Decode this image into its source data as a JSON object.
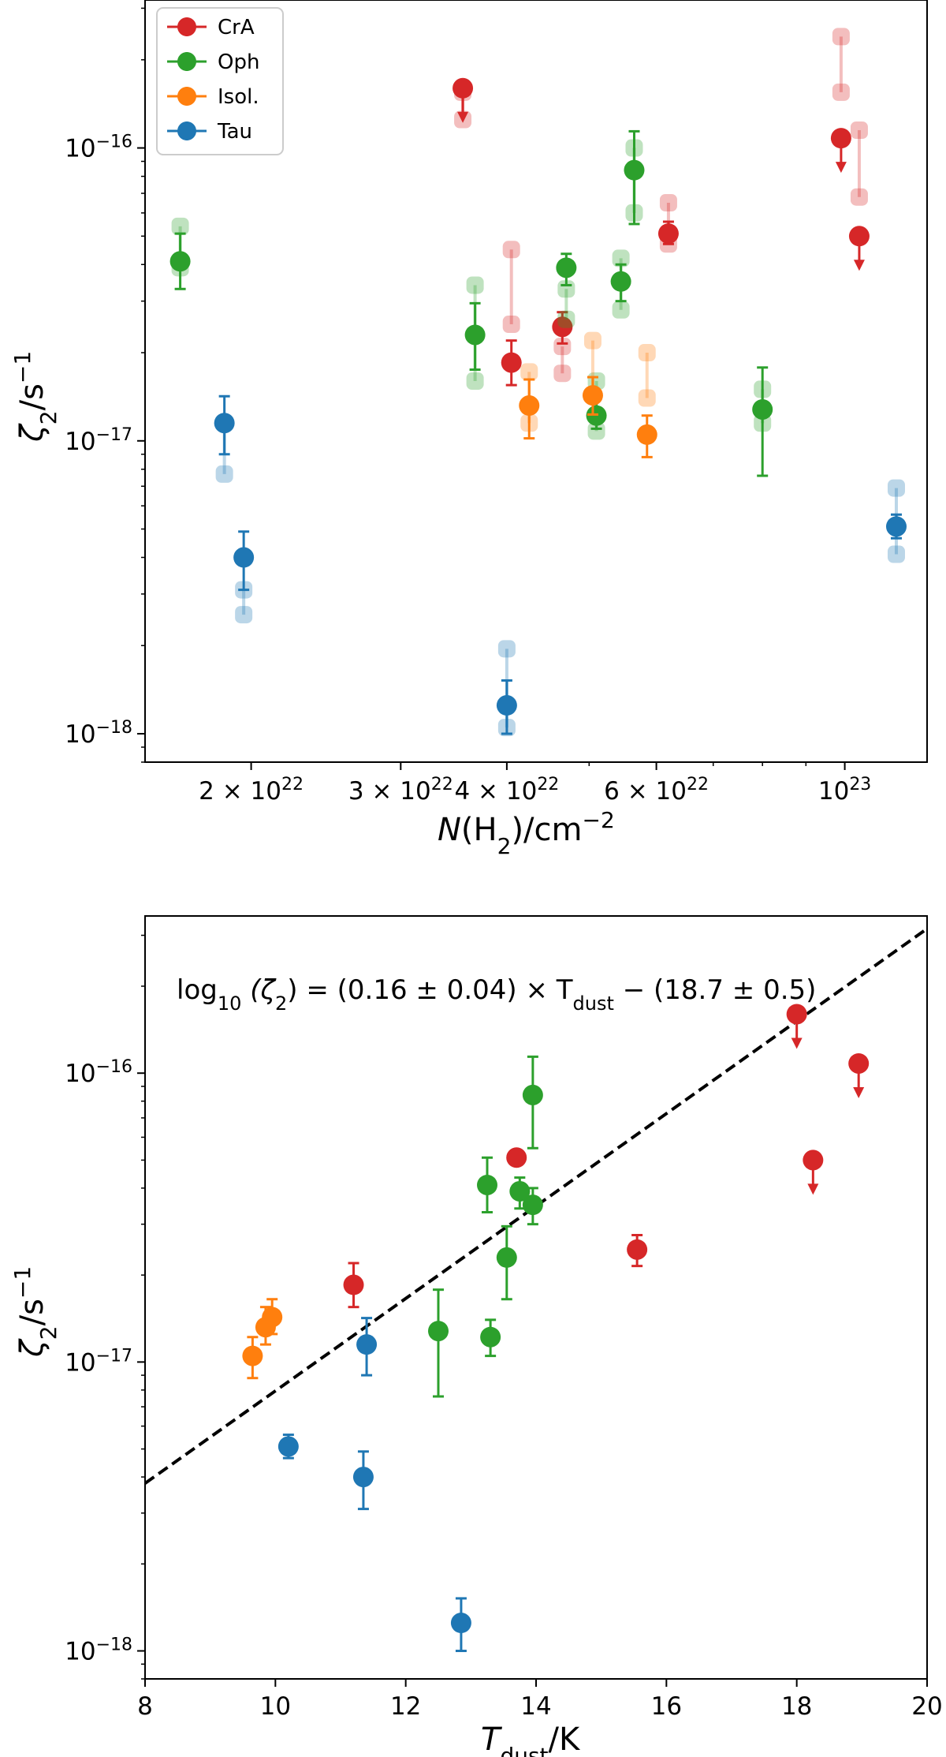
{
  "chart_data": [
    {
      "type": "scatter",
      "xscale": "log",
      "yscale": "log",
      "xlim": [
        15000000000000000000000,
        125000000000000000000000
      ],
      "ylim": [
        8e-19,
        3.2e-16
      ],
      "xlabel_main": "N",
      "xlabel_sub": "(H",
      "xlabel_subscript": "2",
      "xlabel_tail": ")/cm",
      "xlabel_sup": "−2",
      "ylabel_main": "ζ",
      "ylabel_sub": "2",
      "ylabel_tail": "/s",
      "ylabel_sup": "−1",
      "xticks": [
        {
          "value": 20000000000000000000000,
          "mant": "2 × 10",
          "exp": "22"
        },
        {
          "value": 30000000000000000000000,
          "mant": "3 × 10",
          "exp": "22"
        },
        {
          "value": 40000000000000000000000,
          "mant": "4 × 10",
          "exp": "22"
        },
        {
          "value": 60000000000000000000000,
          "mant": "6 × 10",
          "exp": "22"
        },
        {
          "value": 100000000000000000000000,
          "mant": "10",
          "exp": "23"
        }
      ],
      "yticks": [
        {
          "value": 1e-18,
          "mant": "10",
          "exp": "−18"
        },
        {
          "value": 1e-17,
          "mant": "10",
          "exp": "−17"
        },
        {
          "value": 1e-16,
          "mant": "10",
          "exp": "−16"
        }
      ],
      "legend": {
        "placement": "top-left",
        "entries": [
          {
            "name": "CrA",
            "color": "#d62728"
          },
          {
            "name": "Oph",
            "color": "#2ca02c"
          },
          {
            "name": "Isol.",
            "color": "#ff7f0e"
          },
          {
            "name": "Tau",
            "color": "#1f77b4"
          }
        ]
      },
      "series": [
        {
          "name": "CrA",
          "color": "#d62728",
          "points": [
            {
              "x": 35500000000000000000000,
              "y": 1.6e-16,
              "upper_limit": true,
              "range": [
                1.25e-16,
                1.55e-16
              ]
            },
            {
              "x": 40500000000000000000000,
              "y": 1.85e-17,
              "err": [
                1.55e-17,
                2.2e-17
              ],
              "range": [
                2.5e-17,
                4.5e-17
              ]
            },
            {
              "x": 46500000000000000000000,
              "y": 2.45e-17,
              "err": [
                2.15e-17,
                2.75e-17
              ],
              "range": [
                1.7e-17,
                2.1e-17
              ]
            },
            {
              "x": 62000000000000000000000,
              "y": 5.1e-17,
              "err": [
                4.7e-17,
                5.6e-17
              ],
              "range": [
                4.7e-17,
                6.5e-17
              ]
            },
            {
              "x": 99000000000000000000000,
              "y": 1.08e-16,
              "upper_limit": true,
              "range": [
                1.55e-16,
                2.4e-16
              ]
            },
            {
              "x": 104000000000000000000000,
              "y": 5e-17,
              "upper_limit": true,
              "range": [
                6.8e-17,
                1.15e-16
              ]
            }
          ]
        },
        {
          "name": "Oph",
          "color": "#2ca02c",
          "points": [
            {
              "x": 16500000000000000000000,
              "y": 4.1e-17,
              "err": [
                3.3e-17,
                5.1e-17
              ],
              "range": [
                3.9e-17,
                5.4e-17
              ]
            },
            {
              "x": 36700000000000000000000,
              "y": 2.3e-17,
              "err": [
                1.75e-17,
                2.95e-17
              ],
              "range": [
                1.6e-17,
                3.4e-17
              ]
            },
            {
              "x": 47000000000000000000000,
              "y": 3.9e-17,
              "err": [
                3.4e-17,
                4.35e-17
              ],
              "range": [
                2.6e-17,
                3.3e-17
              ]
            },
            {
              "x": 51000000000000000000000,
              "y": 1.22e-17,
              "err": [
                1.1e-17,
                1.4e-17
              ],
              "range": [
                1.08e-17,
                1.6e-17
              ]
            },
            {
              "x": 54500000000000000000000,
              "y": 3.5e-17,
              "err": [
                3e-17,
                4e-17
              ],
              "range": [
                2.8e-17,
                4.2e-17
              ]
            },
            {
              "x": 56500000000000000000000,
              "y": 8.4e-17,
              "err": [
                5.5e-17,
                1.14e-16
              ],
              "range": [
                6e-17,
                1e-16
              ]
            },
            {
              "x": 80000000000000000000000,
              "y": 1.28e-17,
              "err": [
                7.6e-18,
                1.78e-17
              ],
              "range": [
                1.15e-17,
                1.5e-17
              ]
            }
          ]
        },
        {
          "name": "Isol.",
          "color": "#ff7f0e",
          "points": [
            {
              "x": 42500000000000000000000,
              "y": 1.32e-17,
              "err": [
                1.02e-17,
                1.62e-17
              ],
              "range": [
                1.15e-17,
                1.72e-17
              ]
            },
            {
              "x": 50500000000000000000000,
              "y": 1.43e-17,
              "err": [
                1.23e-17,
                1.65e-17
              ],
              "range": [
                1.43e-17,
                2.2e-17
              ]
            },
            {
              "x": 58500000000000000000000,
              "y": 1.05e-17,
              "err": [
                8.8e-18,
                1.22e-17
              ],
              "range": [
                1.4e-17,
                2e-17
              ]
            }
          ]
        },
        {
          "name": "Tau",
          "color": "#1f77b4",
          "points": [
            {
              "x": 18600000000000000000000,
              "y": 1.15e-17,
              "err": [
                9e-18,
                1.42e-17
              ],
              "range": [
                7.7e-18,
                1.15e-17
              ]
            },
            {
              "x": 19600000000000000000000,
              "y": 4e-18,
              "err": [
                3.1e-18,
                4.9e-18
              ],
              "range": [
                2.55e-18,
                3.1e-18
              ]
            },
            {
              "x": 40000000000000000000000,
              "y": 1.25e-18,
              "err": [
                1e-18,
                1.52e-18
              ],
              "range": [
                1.05e-18,
                1.95e-18
              ]
            },
            {
              "x": 115000000000000000000000,
              "y": 5.1e-18,
              "err": [
                4.65e-18,
                5.6e-18
              ],
              "range": [
                4.1e-18,
                6.9e-18
              ]
            }
          ]
        }
      ]
    },
    {
      "type": "scatter",
      "xscale": "linear",
      "yscale": "log",
      "xlim": [
        8,
        20
      ],
      "ylim": [
        8e-19,
        3.5e-16
      ],
      "xlabel_main": "T",
      "xlabel_sub": "dust",
      "xlabel_tail": "/K",
      "ylabel_main": "ζ",
      "ylabel_sub": "2",
      "ylabel_tail": "/s",
      "ylabel_sup": "−1",
      "xticks": [
        8,
        10,
        12,
        14,
        16,
        18,
        20
      ],
      "yticks": [
        {
          "value": 1e-18,
          "mant": "10",
          "exp": "−18"
        },
        {
          "value": 1e-17,
          "mant": "10",
          "exp": "−17"
        },
        {
          "value": 1e-16,
          "mant": "10",
          "exp": "−16"
        }
      ],
      "annotation": {
        "text_pre": "log",
        "text_pre_sub": "10",
        "text_mid": " (ζ",
        "text_mid_sub": "2",
        "text_post": ") = (0.16 ± 0.04) × T",
        "text_post_sub": "dust",
        "text_end": " − (18.7 ± 0.5)"
      },
      "fit_line": {
        "slope": 0.16,
        "intercept": -18.7,
        "style": "dashed",
        "color": "#000000"
      },
      "series": [
        {
          "name": "CrA",
          "color": "#d62728",
          "points": [
            {
              "x": 18.0,
              "y": 1.6e-16,
              "upper_limit": true
            },
            {
              "x": 11.2,
              "y": 1.85e-17,
              "err": [
                1.55e-17,
                2.2e-17
              ]
            },
            {
              "x": 15.55,
              "y": 2.45e-17,
              "err": [
                2.15e-17,
                2.75e-17
              ]
            },
            {
              "x": 13.7,
              "y": 5.1e-17
            },
            {
              "x": 18.95,
              "y": 1.08e-16,
              "upper_limit": true
            },
            {
              "x": 18.25,
              "y": 5e-17,
              "upper_limit": true
            }
          ]
        },
        {
          "name": "Oph",
          "color": "#2ca02c",
          "points": [
            {
              "x": 13.25,
              "y": 4.1e-17,
              "err": [
                3.3e-17,
                5.1e-17
              ]
            },
            {
              "x": 13.55,
              "y": 2.3e-17,
              "err": [
                1.65e-17,
                2.95e-17
              ]
            },
            {
              "x": 13.75,
              "y": 3.9e-17,
              "err": [
                3.4e-17,
                4.35e-17
              ]
            },
            {
              "x": 13.3,
              "y": 1.22e-17,
              "err": [
                1.05e-17,
                1.4e-17
              ]
            },
            {
              "x": 13.95,
              "y": 3.5e-17,
              "err": [
                3e-17,
                4e-17
              ]
            },
            {
              "x": 13.95,
              "y": 8.4e-17,
              "err": [
                5.5e-17,
                1.14e-16
              ]
            },
            {
              "x": 12.5,
              "y": 1.28e-17,
              "err": [
                7.6e-18,
                1.78e-17
              ]
            }
          ]
        },
        {
          "name": "Isol.",
          "color": "#ff7f0e",
          "points": [
            {
              "x": 9.65,
              "y": 1.05e-17,
              "err": [
                8.8e-18,
                1.22e-17
              ]
            },
            {
              "x": 9.85,
              "y": 1.32e-17,
              "err": [
                1.15e-17,
                1.55e-17
              ]
            },
            {
              "x": 9.95,
              "y": 1.43e-17,
              "err": [
                1.25e-17,
                1.65e-17
              ]
            }
          ]
        },
        {
          "name": "Tau",
          "color": "#1f77b4",
          "points": [
            {
              "x": 11.4,
              "y": 1.15e-17,
              "err": [
                9e-18,
                1.42e-17
              ]
            },
            {
              "x": 11.35,
              "y": 4e-18,
              "err": [
                3.1e-18,
                4.9e-18
              ]
            },
            {
              "x": 12.85,
              "y": 1.25e-18,
              "err": [
                1e-18,
                1.52e-18
              ]
            },
            {
              "x": 10.2,
              "y": 5.1e-18,
              "err": [
                4.65e-18,
                5.6e-18
              ]
            }
          ]
        }
      ]
    }
  ]
}
